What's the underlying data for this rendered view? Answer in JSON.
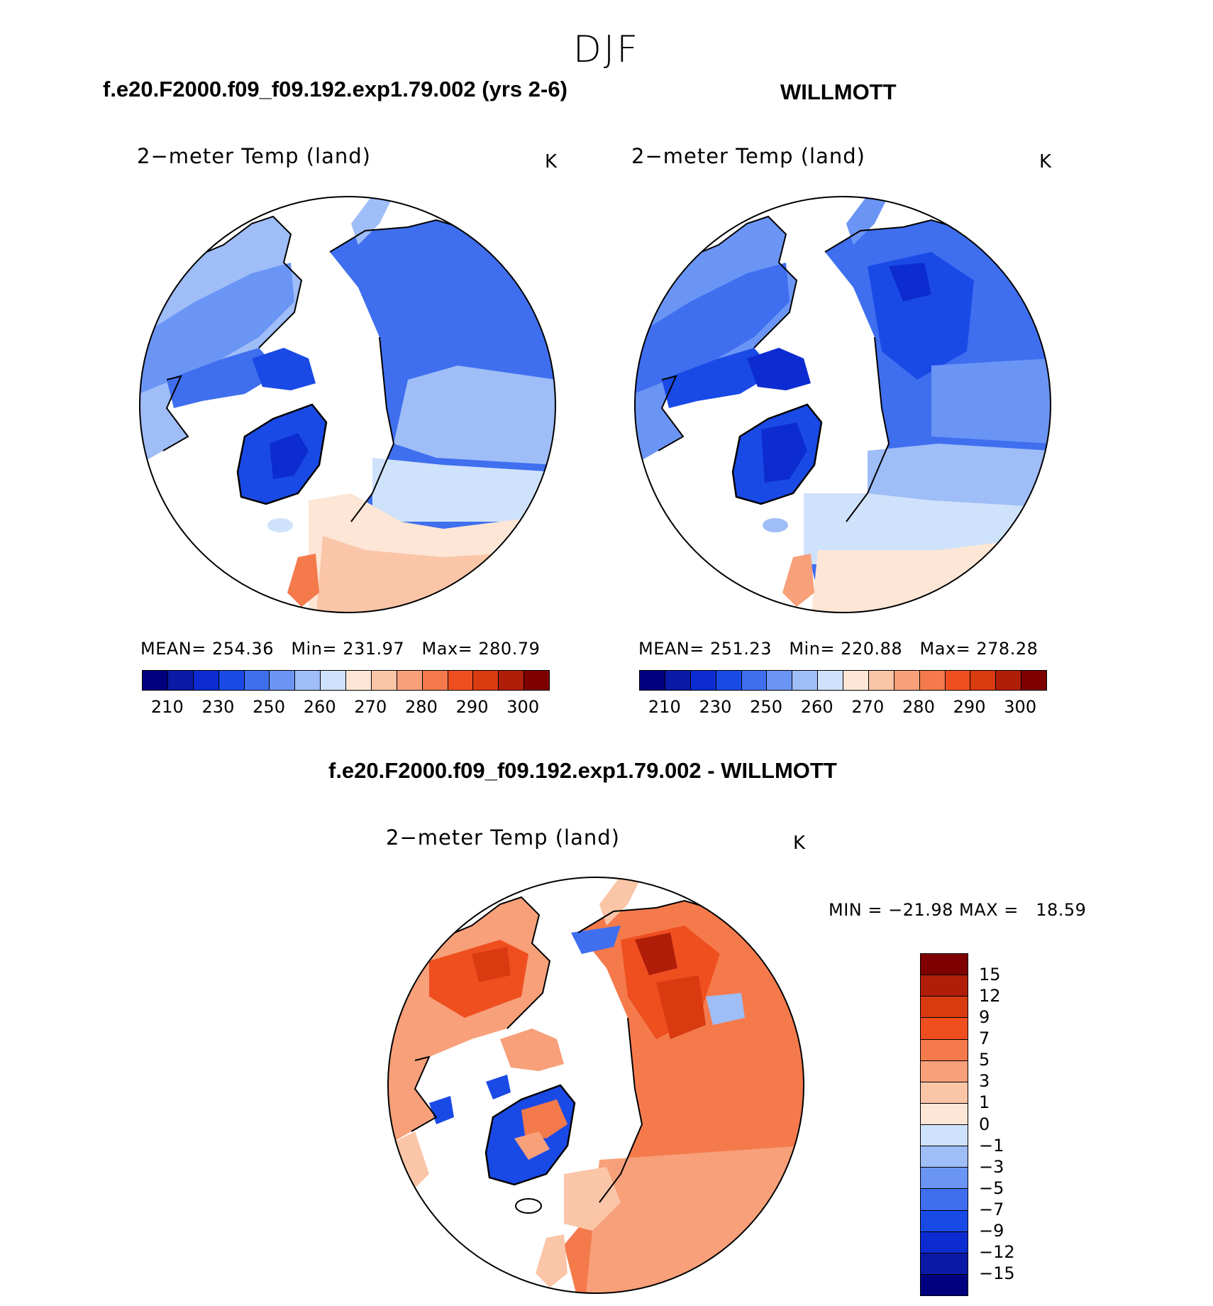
{
  "season": "DJF",
  "panels": [
    {
      "case_title": "f.e20.F2000.f09_f09.192.exp1.79.002 (yrs 2-6)",
      "variable": "2−meter Temp (land)",
      "units": "K",
      "stats": "MEAN= 254.36   Min= 231.97   Max= 280.79"
    },
    {
      "case_title": "WILLMOTT",
      "variable": "2−meter Temp (land)",
      "units": "K",
      "stats": "MEAN= 251.23   Min= 220.88   Max= 278.28"
    }
  ],
  "abs_colorbar": {
    "colors": [
      "#00007f",
      "#0a1aa6",
      "#0c2cd1",
      "#1a4ae6",
      "#3f6fef",
      "#6b95f5",
      "#9fbdf7",
      "#cfe2fb",
      "#fde6d6",
      "#fbc5a8",
      "#f7a07a",
      "#f47a4c",
      "#ef4f1f",
      "#d93a10",
      "#b01e0a",
      "#7f0000"
    ],
    "labels": [
      "210",
      "230",
      "250",
      "260",
      "270",
      "280",
      "290",
      "300"
    ]
  },
  "diff_panel": {
    "title": "f.e20.F2000.f09_f09.192.exp1.79.002 - WILLMOTT",
    "variable": "2−meter Temp (land)",
    "units": "K",
    "minmax": "MIN = −21.98 MAX =   18.59"
  },
  "diff_colorbar": {
    "colors": [
      "#7f0000",
      "#b01e0a",
      "#d93a10",
      "#ef4f1f",
      "#f47a4c",
      "#f7a07a",
      "#fbc5a8",
      "#fde6d6",
      "#cfe2fb",
      "#9fbdf7",
      "#6b95f5",
      "#3f6fef",
      "#1a4ae6",
      "#0c2cd1",
      "#0a1aa6",
      "#00007f"
    ],
    "labels": [
      "15",
      "12",
      "9",
      "7",
      "5",
      "3",
      "1",
      "0",
      "−1",
      "−3",
      "−5",
      "−7",
      "−9",
      "−12",
      "−15"
    ]
  },
  "map_colors": {
    "ocean": "#ffffff",
    "coast": "#000000"
  }
}
